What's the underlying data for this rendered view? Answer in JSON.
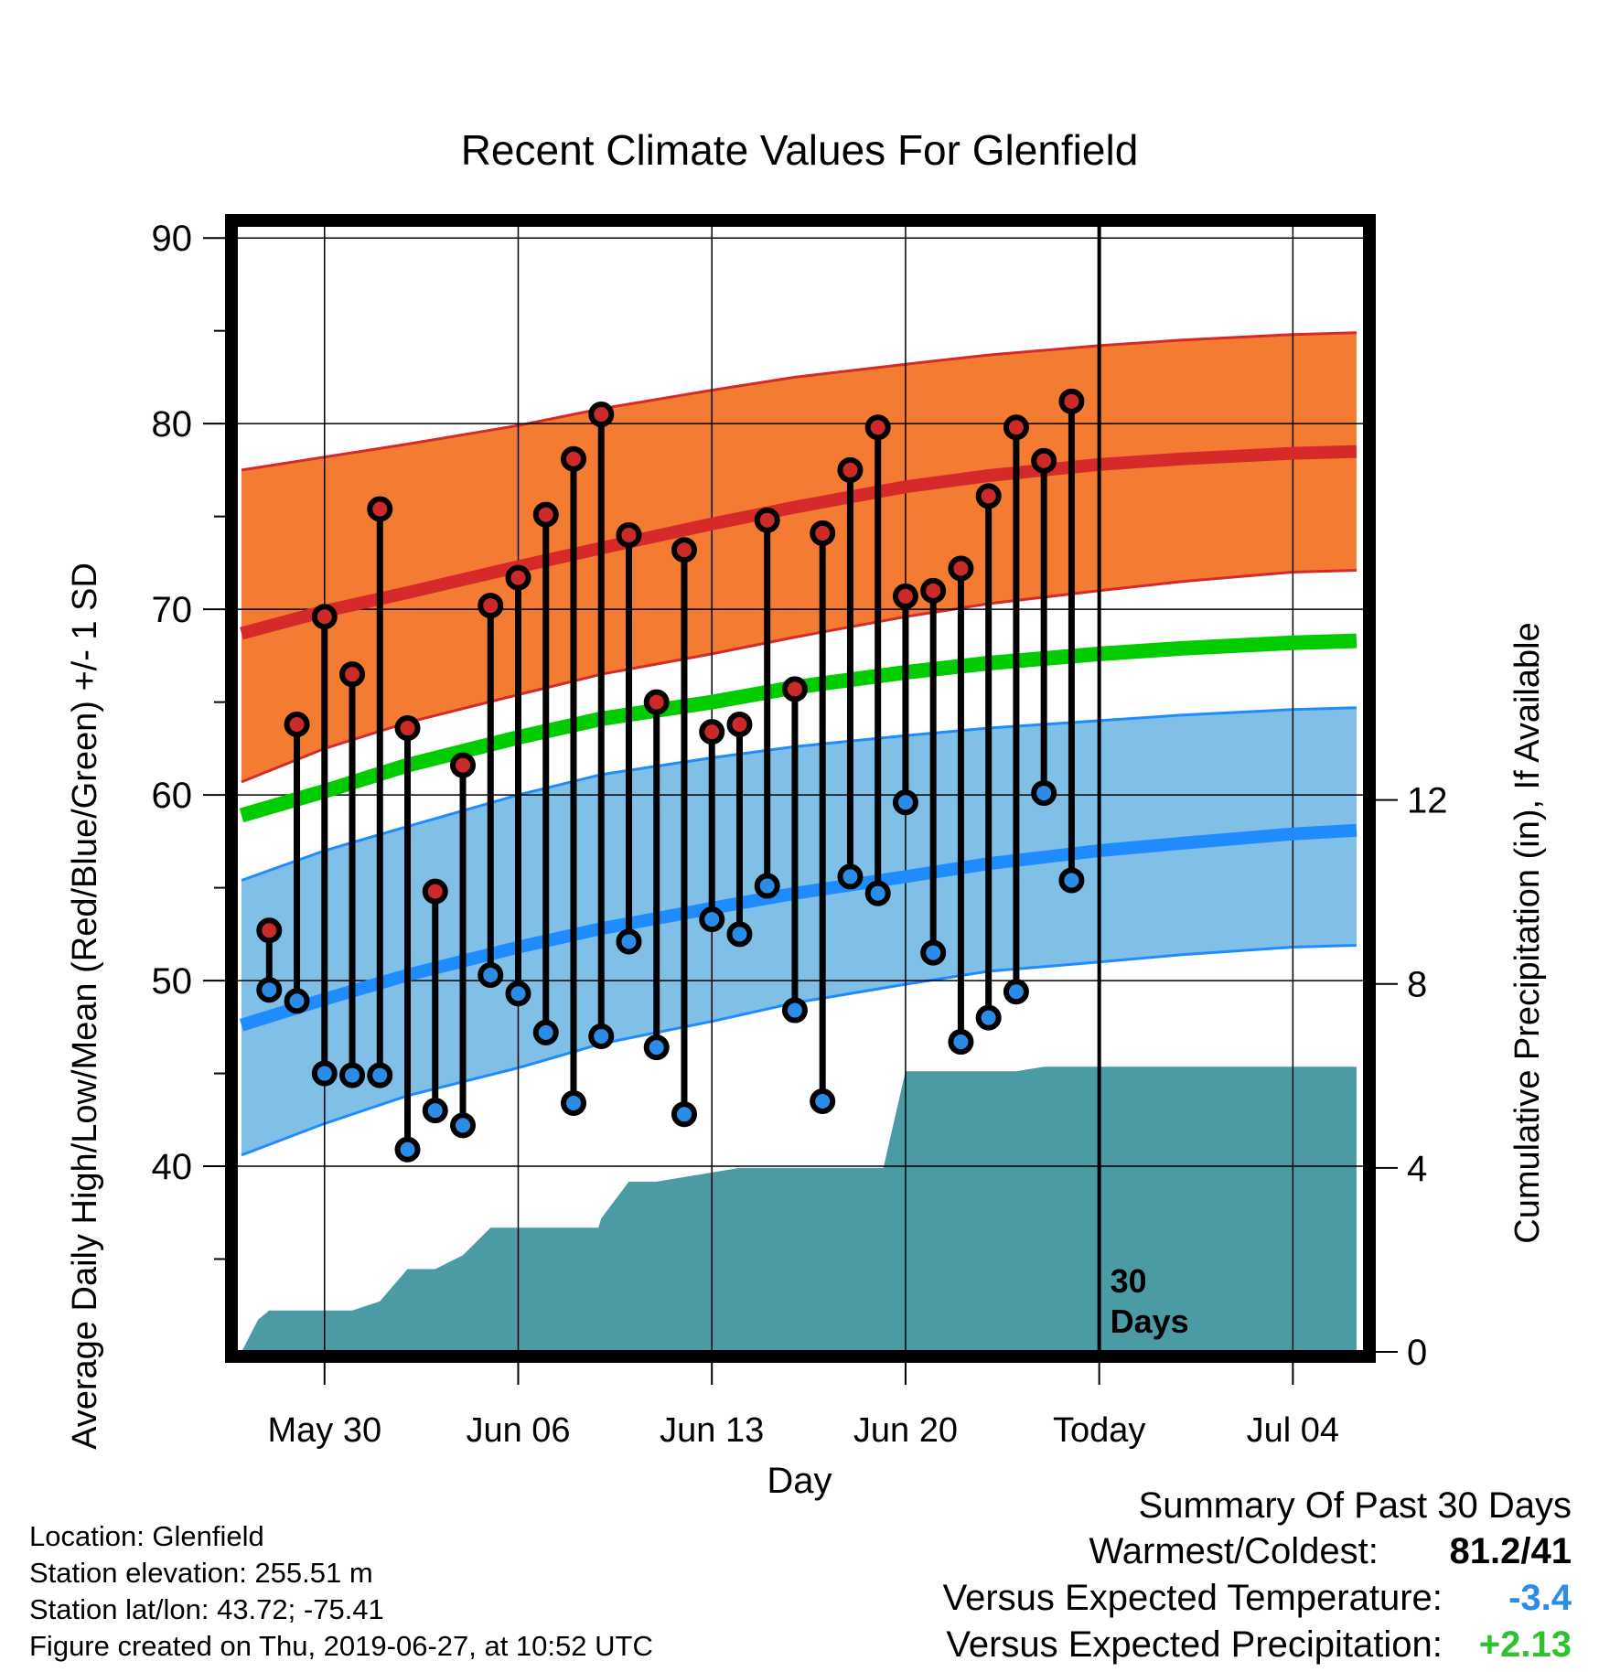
{
  "chart_data": {
    "type": "line",
    "title": "Recent Climate Values For Glenfield",
    "xlabel": "Day",
    "ylabel": "Average Daily High/Low/Mean (Red/Blue/Green) +/- 1 SD",
    "y2label": "Cumulative Precipitation (in), If Available",
    "x_tick_labels": [
      "May 30",
      "Jun 06",
      "Jun 13",
      "Jun 20",
      "Today",
      "Jul 04"
    ],
    "x_tick_days": [
      30,
      37,
      44,
      51,
      58,
      65
    ],
    "xlim": [
      26.8,
      67.6
    ],
    "ylim": [
      30,
      90.7
    ],
    "y_ticks": [
      40,
      50,
      60,
      70,
      80,
      90
    ],
    "y2lim": [
      0,
      24.5
    ],
    "y2_ticks": [
      0,
      4,
      8,
      12
    ],
    "today_day": 58,
    "today_annotation": "30\nDays",
    "normals": {
      "x": [
        27,
        30,
        33,
        37,
        40,
        44,
        47,
        51,
        54,
        58,
        61,
        65,
        67.3
      ],
      "high_mean": [
        68.7,
        69.9,
        70.9,
        72.3,
        73.3,
        74.6,
        75.5,
        76.6,
        77.2,
        77.8,
        78.1,
        78.4,
        78.5
      ],
      "high_upper": [
        77.5,
        78.2,
        78.9,
        79.9,
        80.8,
        81.8,
        82.5,
        83.2,
        83.7,
        84.2,
        84.5,
        84.8,
        84.9
      ],
      "high_lower": [
        60.7,
        62.5,
        63.9,
        65.4,
        66.5,
        67.6,
        68.5,
        69.6,
        70.3,
        71.0,
        71.5,
        72.0,
        72.1
      ],
      "mean": [
        58.9,
        60.2,
        61.6,
        63.1,
        64.1,
        65.0,
        65.8,
        66.6,
        67.1,
        67.6,
        67.9,
        68.2,
        68.3
      ],
      "low_mean": [
        47.6,
        49.0,
        50.3,
        51.8,
        52.8,
        53.9,
        54.7,
        55.6,
        56.3,
        57.0,
        57.4,
        57.9,
        58.1
      ],
      "low_upper": [
        55.4,
        57.0,
        58.3,
        60.0,
        61.1,
        62.0,
        62.6,
        63.2,
        63.6,
        64.0,
        64.3,
        64.6,
        64.7
      ],
      "low_lower": [
        40.6,
        42.3,
        43.8,
        45.3,
        46.6,
        47.8,
        48.8,
        49.8,
        50.5,
        51.0,
        51.4,
        51.8,
        51.9
      ]
    },
    "observed": {
      "days": [
        28,
        29,
        30,
        31,
        32,
        33,
        34,
        35,
        36,
        37,
        38,
        39,
        40,
        41,
        42,
        43,
        44,
        45,
        46,
        47,
        48,
        49,
        50,
        51,
        52,
        53,
        54,
        55,
        56,
        57
      ],
      "high": [
        52.7,
        63.8,
        69.6,
        66.5,
        75.4,
        63.6,
        54.8,
        61.6,
        70.2,
        71.7,
        75.1,
        78.1,
        80.5,
        74.0,
        65.0,
        73.2,
        63.4,
        63.8,
        74.8,
        65.7,
        74.1,
        77.5,
        79.8,
        70.7,
        71.0,
        72.2,
        76.1,
        79.8,
        78.0,
        81.2
      ],
      "low": [
        49.5,
        48.9,
        45.0,
        44.9,
        44.9,
        40.9,
        43.0,
        42.2,
        50.3,
        49.3,
        47.2,
        43.4,
        47.0,
        52.1,
        46.4,
        42.8,
        53.3,
        52.5,
        55.1,
        48.4,
        43.5,
        55.6,
        54.7,
        59.6,
        51.5,
        46.7,
        48.0,
        49.4,
        60.1,
        55.4
      ]
    },
    "precipitation": {
      "x": [
        27,
        27.6,
        28,
        28.6,
        30,
        31,
        32,
        33,
        34,
        35,
        36,
        37,
        38,
        39,
        39.9,
        40,
        41,
        41.2,
        42,
        43,
        44,
        45,
        46,
        47,
        48,
        49,
        50,
        50.2,
        51,
        51.2,
        52,
        53,
        54,
        55,
        56,
        57,
        58,
        60,
        62,
        65,
        67.3
      ],
      "cum": [
        0.0,
        0.7,
        0.9,
        0.9,
        0.9,
        0.9,
        1.1,
        1.8,
        1.8,
        2.1,
        2.7,
        2.7,
        2.7,
        2.7,
        2.7,
        2.9,
        3.7,
        3.7,
        3.7,
        3.8,
        3.9,
        4.0,
        4.0,
        4.0,
        4.0,
        4.0,
        4.0,
        4.0,
        6.1,
        6.1,
        6.1,
        6.1,
        6.1,
        6.1,
        6.2,
        6.2,
        6.2,
        6.2,
        6.2,
        6.2,
        6.2
      ]
    },
    "colors": {
      "high_band": "#f47c32",
      "high_line": "#d62a2a",
      "mean_line": "#00cc00",
      "low_band": "#80bfe6",
      "low_line": "#1e8cff",
      "precip": "#4a9ba3",
      "high_dot": "#cc2a2a",
      "low_dot": "#2a8ce6"
    },
    "grid": true
  },
  "footer": {
    "location": "Location: Glenfield",
    "elevation": "Station elevation: 255.51 m",
    "latlon": "Station lat/lon: 43.72; -75.41",
    "created": "Figure created on Thu, 2019-06-27, at 10:52 UTC"
  },
  "summary": {
    "title": "Summary Of Past 30 Days",
    "warmest_label": "Warmest/Coldest:",
    "warmest_value": "81.2/41",
    "temp_label": "Versus Expected Temperature:",
    "temp_value": "-3.4",
    "temp_color": "#2a8ce6",
    "precip_label": "Versus Expected Precipitation:",
    "precip_value": "+2.13",
    "precip_color": "#2ec32e"
  }
}
